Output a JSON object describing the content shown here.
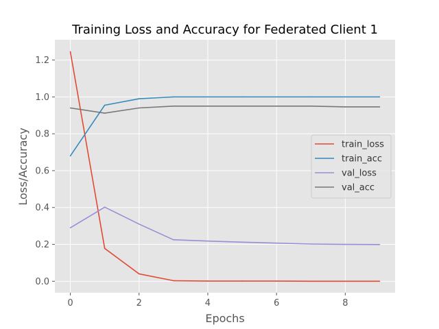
{
  "chart_data": {
    "type": "line",
    "title": "Training Loss and Accuracy for Federated Client 1",
    "xlabel": "Epochs",
    "ylabel": "Loss/Accuracy",
    "x": [
      0,
      1,
      2,
      3,
      4,
      5,
      6,
      7,
      8,
      9
    ],
    "xlim": [
      -0.45,
      9.45
    ],
    "ylim": [
      -0.062,
      1.31
    ],
    "xticks": [
      0,
      2,
      4,
      6,
      8
    ],
    "yticks": [
      0.0,
      0.2,
      0.4,
      0.6,
      0.8,
      1.0,
      1.2
    ],
    "xtick_labels": [
      "0",
      "2",
      "4",
      "6",
      "8"
    ],
    "ytick_labels": [
      "0.0",
      "0.2",
      "0.4",
      "0.6",
      "0.8",
      "1.0",
      "1.2"
    ],
    "grid": true,
    "legend_position": "center-right",
    "style": "ggplot",
    "series": [
      {
        "name": "train_loss",
        "color": "#E24A33",
        "values": [
          1.245,
          0.178,
          0.04,
          0.003,
          0.001,
          0.001,
          0.001,
          0.0,
          0.0,
          0.0
        ]
      },
      {
        "name": "train_acc",
        "color": "#348ABD",
        "values": [
          0.68,
          0.955,
          0.99,
          1.0,
          1.0,
          1.0,
          1.0,
          1.0,
          1.0,
          1.0
        ]
      },
      {
        "name": "val_loss",
        "color": "#988ED5",
        "values": [
          0.29,
          0.402,
          0.31,
          0.225,
          0.218,
          0.212,
          0.207,
          0.202,
          0.2,
          0.199
        ]
      },
      {
        "name": "val_acc",
        "color": "#777777",
        "values": [
          0.94,
          0.912,
          0.94,
          0.95,
          0.95,
          0.95,
          0.95,
          0.95,
          0.946,
          0.946
        ]
      }
    ]
  }
}
